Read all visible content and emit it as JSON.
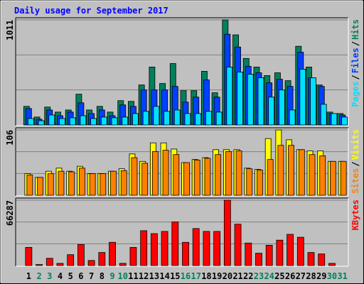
{
  "chart_data": [
    {
      "type": "bar",
      "title": "Daily usage for September 2017",
      "title_color": "#0000ff",
      "ylim": [
        0,
        1011
      ],
      "yticks": [
        1011
      ],
      "grid": true,
      "legend_separator": "/",
      "series": [
        {
          "name": "Hits",
          "color": "#00805c",
          "values": [
            179,
            76,
            172,
            124,
            144,
            296,
            144,
            179,
            124,
            234,
            227,
            385,
            557,
            399,
            591,
            330,
            330,
            516,
            310,
            1011,
            867,
            640,
            557,
            475,
            502,
            426,
            757,
            557,
            385,
            124,
            110
          ]
        },
        {
          "name": "Files",
          "color": "#0040ff",
          "values": [
            158,
            55,
            144,
            89,
            124,
            213,
            110,
            144,
            89,
            193,
            179,
            337,
            337,
            337,
            371,
            220,
            268,
            433,
            268,
            873,
            750,
            564,
            502,
            406,
            440,
            371,
            701,
            454,
            371,
            110,
            96
          ]
        },
        {
          "name": "Pages",
          "color": "#00e0ff",
          "values": [
            62,
            41,
            96,
            62,
            69,
            89,
            62,
            76,
            69,
            76,
            110,
            131,
            179,
            131,
            144,
            110,
            110,
            131,
            124,
            557,
            509,
            488,
            454,
            268,
            337,
            144,
            536,
            454,
            199,
            110,
            76
          ]
        }
      ]
    },
    {
      "type": "bar",
      "ylim": [
        0,
        106
      ],
      "yticks": [
        106
      ],
      "grid": true,
      "legend_separator": "/",
      "series": [
        {
          "name": "Visits",
          "color": "#ffff00",
          "values": [
            35,
            29,
            39,
            44,
            39,
            47,
            35,
            35,
            39,
            43,
            67,
            55,
            85,
            85,
            75,
            53,
            58,
            61,
            74,
            74,
            74,
            44,
            42,
            92,
            106,
            90,
            74,
            72,
            72,
            55,
            55
          ]
        },
        {
          "name": "Sites",
          "color": "#ff8000",
          "values": [
            33,
            29,
            35,
            39,
            38,
            44,
            35,
            35,
            39,
            40,
            61,
            52,
            71,
            73,
            66,
            53,
            57,
            60,
            66,
            71,
            72,
            43,
            41,
            58,
            81,
            81,
            74,
            66,
            64,
            55,
            55
          ]
        }
      ]
    },
    {
      "type": "bar",
      "ylim": [
        0,
        66287
      ],
      "yticks": [
        66287
      ],
      "grid": true,
      "categories": [
        "1",
        "2",
        "3",
        "4",
        "5",
        "6",
        "7",
        "8",
        "9",
        "10",
        "11",
        "12",
        "13",
        "14",
        "15",
        "16",
        "17",
        "18",
        "19",
        "20",
        "21",
        "22",
        "23",
        "24",
        "25",
        "26",
        "27",
        "28",
        "29",
        "30",
        "31"
      ],
      "category_colors": [
        "#000000",
        "#00805c",
        "#00805c",
        "#000000",
        "#000000",
        "#000000",
        "#000000",
        "#000000",
        "#00805c",
        "#00805c",
        "#000000",
        "#000000",
        "#000000",
        "#000000",
        "#000000",
        "#00805c",
        "#00805c",
        "#000000",
        "#000000",
        "#000000",
        "#000000",
        "#000000",
        "#00805c",
        "#00805c",
        "#000000",
        "#000000",
        "#000000",
        "#000000",
        "#000000",
        "#00805c",
        "#00805c"
      ],
      "series": [
        {
          "name": "KBytes",
          "color": "#ff0000",
          "values": [
            18413,
            1000,
            7365,
            2210,
            11048,
            21359,
            5156,
            13257,
            23569,
            2210,
            18413,
            35353,
            32407,
            34617,
            44191,
            23569,
            37563,
            34617,
            34617,
            66287,
            41982,
            22832,
            12521,
            20623,
            25778,
            31670,
            28724,
            13257,
            11784,
            2210,
            0
          ]
        }
      ]
    }
  ]
}
